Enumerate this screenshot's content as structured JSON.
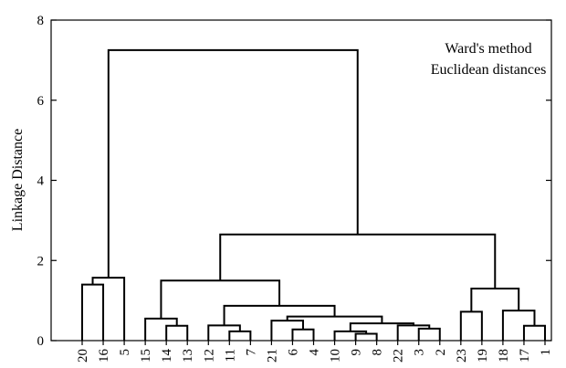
{
  "chart_data": {
    "type": "dendrogram",
    "title": "",
    "ylabel": "Linkage Distance",
    "xlabel": "",
    "ylim": [
      0,
      8
    ],
    "yticks": [
      0,
      2,
      4,
      6,
      8
    ],
    "grid": false,
    "annotations": [
      "Ward's method",
      "Euclidean distances"
    ],
    "leaf_order": [
      "20",
      "16",
      "5",
      "15",
      "14",
      "13",
      "12",
      "11",
      "7",
      "21",
      "6",
      "4",
      "10",
      "9",
      "8",
      "22",
      "3",
      "2",
      "23",
      "19",
      "18",
      "17",
      "1"
    ],
    "merges": [
      {
        "a": "leaf:20",
        "b": "leaf:16",
        "height": 1.4
      },
      {
        "a": "m0",
        "b": "leaf:5",
        "height": 1.57
      },
      {
        "a": "leaf:14",
        "b": "leaf:13",
        "height": 0.37
      },
      {
        "a": "leaf:15",
        "b": "m2",
        "height": 0.55
      },
      {
        "a": "leaf:11",
        "b": "leaf:7",
        "height": 0.23
      },
      {
        "a": "leaf:12",
        "b": "m4",
        "height": 0.38
      },
      {
        "a": "leaf:6",
        "b": "leaf:4",
        "height": 0.28
      },
      {
        "a": "leaf:21",
        "b": "m6",
        "height": 0.5
      },
      {
        "a": "leaf:9",
        "b": "leaf:8",
        "height": 0.17
      },
      {
        "a": "leaf:10",
        "b": "m8",
        "height": 0.23
      },
      {
        "a": "leaf:3",
        "b": "leaf:2",
        "height": 0.3
      },
      {
        "a": "leaf:22",
        "b": "m10",
        "height": 0.38
      },
      {
        "a": "m9",
        "b": "m11",
        "height": 0.43
      },
      {
        "a": "m7",
        "b": "m12",
        "height": 0.6
      },
      {
        "a": "m5",
        "b": "m13",
        "height": 0.87
      },
      {
        "a": "m3",
        "b": "m14",
        "height": 1.5
      },
      {
        "a": "leaf:23",
        "b": "leaf:19",
        "height": 0.72
      },
      {
        "a": "leaf:17",
        "b": "leaf:1",
        "height": 0.37
      },
      {
        "a": "leaf:18",
        "b": "m17",
        "height": 0.75
      },
      {
        "a": "m16",
        "b": "m18",
        "height": 1.3
      },
      {
        "a": "m15",
        "b": "m19",
        "height": 2.65
      },
      {
        "a": "m1",
        "b": "m20",
        "height": 7.25
      }
    ]
  }
}
